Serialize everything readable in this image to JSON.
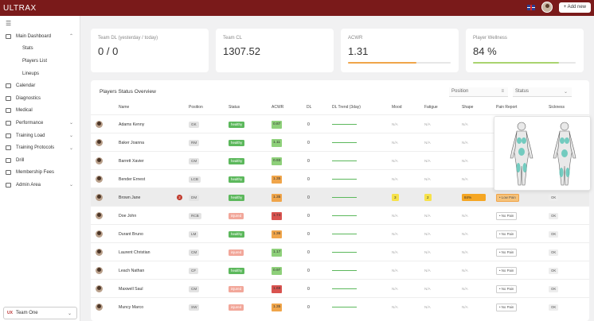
{
  "app": {
    "logo": "ULTRAX"
  },
  "topbar": {
    "add_label": "+ Add new",
    "flag_icon": "uk-flag-icon"
  },
  "sidebar": {
    "items": [
      {
        "label": "Main Dashboard",
        "icon": "dashboard-icon",
        "chev": "^"
      },
      {
        "label": "Stats",
        "sub": true
      },
      {
        "label": "Players List",
        "sub": true
      },
      {
        "label": "Lineups",
        "sub": true
      },
      {
        "label": "Calendar",
        "icon": "calendar-icon"
      },
      {
        "label": "Diagnostics",
        "icon": "diagnostics-icon"
      },
      {
        "label": "Medical",
        "icon": "medical-icon"
      },
      {
        "label": "Performance",
        "icon": "performance-icon",
        "chev": "v"
      },
      {
        "label": "Training Load",
        "icon": "training-load-icon",
        "chev": "v"
      },
      {
        "label": "Training Protocols",
        "icon": "protocol-icon",
        "chev": "v"
      },
      {
        "label": "Drill",
        "icon": "drill-icon"
      },
      {
        "label": "Membership Fees",
        "icon": "fees-icon"
      },
      {
        "label": "Admin Area",
        "icon": "admin-icon",
        "chev": "v"
      }
    ],
    "team": {
      "logo": "UX",
      "name": "Team One"
    }
  },
  "cards": [
    {
      "label": "Team DL (yesterday / today)",
      "value": "0 / 0"
    },
    {
      "label": "Team CL",
      "value": "1307.52"
    },
    {
      "label": "ACWR",
      "value": "1.31",
      "progress": 0.67,
      "color": "#f0a54a"
    },
    {
      "label": "Player Wellness",
      "value": "84 %",
      "progress": 0.84,
      "color": "#a9d46f"
    }
  ],
  "table": {
    "title": "Players Status Overview",
    "filters": {
      "position": "Position",
      "status": "Status"
    },
    "headers": [
      "Name",
      "Position",
      "Status",
      "ACWR",
      "DL",
      "DL Trend (3day)",
      "Mood",
      "Fatigue",
      "Shape",
      "Pain Report",
      "Sickness"
    ],
    "rows": [
      {
        "name": "Adams Kenny",
        "pos": "GK",
        "status": "healthy",
        "acwr": "0.87",
        "acwr_color": "#8ed07a",
        "dl": "0"
      },
      {
        "name": "Baker Joanna",
        "pos": "RM",
        "status": "healthy",
        "acwr": "1.11",
        "acwr_color": "#8ed07a",
        "dl": "0"
      },
      {
        "name": "Barrett Xavier",
        "pos": "CM",
        "status": "healthy",
        "acwr": "0.93",
        "acwr_color": "#8ed07a",
        "dl": "0"
      },
      {
        "name": "Bender Ernest",
        "pos": "LCB",
        "status": "healthy",
        "acwr": "1.35",
        "acwr_color": "#f0a54a",
        "dl": "0"
      },
      {
        "name": "Brown Jane",
        "pos": "DM",
        "status": "healthy",
        "acwr": "1.35",
        "acwr_color": "#f0a54a",
        "dl": "0",
        "badge": "2",
        "mood": "3",
        "fatigue": "2",
        "shape": "84%",
        "pain": "• Low Pain",
        "sickness": "OK",
        "highlight": true
      },
      {
        "name": "Doe John",
        "pos": "RCB",
        "status": "injured",
        "acwr": "1.74",
        "acwr_color": "#d9534f",
        "dl": "0",
        "mood": "N/A",
        "fatigue": "N/A",
        "shape": "N/A",
        "pain": "• No Pain",
        "sickness": "OK"
      },
      {
        "name": "Durant Bruno",
        "pos": "LM",
        "status": "healthy",
        "acwr": "1.36",
        "acwr_color": "#f0a54a",
        "dl": "0",
        "mood": "N/A",
        "fatigue": "N/A",
        "shape": "N/A",
        "pain": "• No Pain",
        "sickness": "OK"
      },
      {
        "name": "Laurent Christian",
        "pos": "CM",
        "status": "injured",
        "acwr": "1.17",
        "acwr_color": "#8ed07a",
        "dl": "0",
        "mood": "N/A",
        "fatigue": "N/A",
        "shape": "N/A",
        "pain": "• No Pain",
        "sickness": "OK"
      },
      {
        "name": "Leach Nathan",
        "pos": "CF",
        "status": "healthy",
        "acwr": "0.97",
        "acwr_color": "#8ed07a",
        "dl": "0",
        "mood": "N/A",
        "fatigue": "N/A",
        "shape": "N/A",
        "pain": "• No Pain",
        "sickness": "OK"
      },
      {
        "name": "Maxwell Saul",
        "pos": "CM",
        "status": "injured",
        "acwr": "1.69",
        "acwr_color": "#d9534f",
        "dl": "0",
        "mood": "N/A",
        "fatigue": "N/A",
        "shape": "N/A",
        "pain": "• No Pain",
        "sickness": "OK"
      },
      {
        "name": "Muncy Marco",
        "pos": "SW",
        "status": "injured",
        "acwr": "1.35",
        "acwr_color": "#f0a54a",
        "dl": "0",
        "mood": "N/A",
        "fatigue": "N/A",
        "shape": "N/A",
        "pain": "• No Pain",
        "sickness": "OK"
      }
    ],
    "na": "N/A"
  },
  "colors": {
    "brand": "#7a1a1a",
    "healthy": "#5cb85c",
    "injured": "#f2a79a",
    "mood": "#f7e24a",
    "shape": "#f5a623"
  }
}
